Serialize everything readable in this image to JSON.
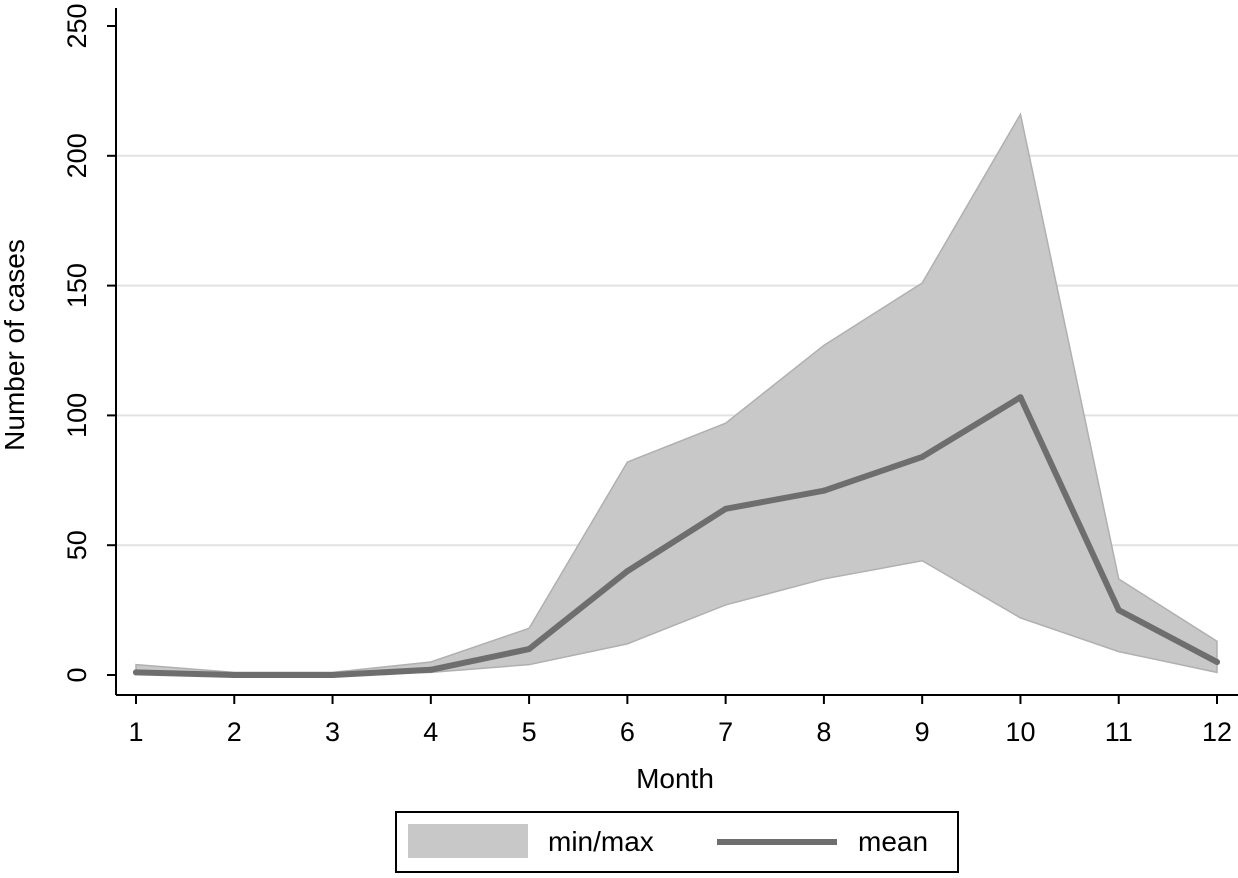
{
  "chart_data": {
    "type": "area",
    "xlabel": "Month",
    "ylabel": "Number of cases",
    "x": [
      1,
      2,
      3,
      4,
      5,
      6,
      7,
      8,
      9,
      10,
      11,
      12
    ],
    "xticks": [
      "1",
      "2",
      "3",
      "4",
      "5",
      "6",
      "7",
      "8",
      "9",
      "10",
      "11",
      "12"
    ],
    "yticks": [
      "0",
      "50",
      "100",
      "150",
      "200",
      "250"
    ],
    "ylim": [
      0,
      250
    ],
    "xlim": [
      1,
      12
    ],
    "grid": true,
    "legend_position": "bottom",
    "band": {
      "name": "min/max",
      "min": [
        1,
        0,
        0,
        1,
        4,
        12,
        27,
        37,
        44,
        22,
        9,
        1
      ],
      "max": [
        4,
        1,
        1,
        5,
        18,
        82,
        97,
        127,
        151,
        216,
        37,
        13
      ]
    },
    "series": [
      {
        "name": "mean",
        "values": [
          1,
          0,
          0,
          2,
          10,
          40,
          64,
          71,
          84,
          107,
          25,
          5
        ]
      }
    ],
    "colors": {
      "band_fill": "#c8c8c8",
      "band_edge": "#b0b0b0",
      "line": "#6e6e6e",
      "grid": "#e2e2e2",
      "axis": "#000000"
    }
  }
}
